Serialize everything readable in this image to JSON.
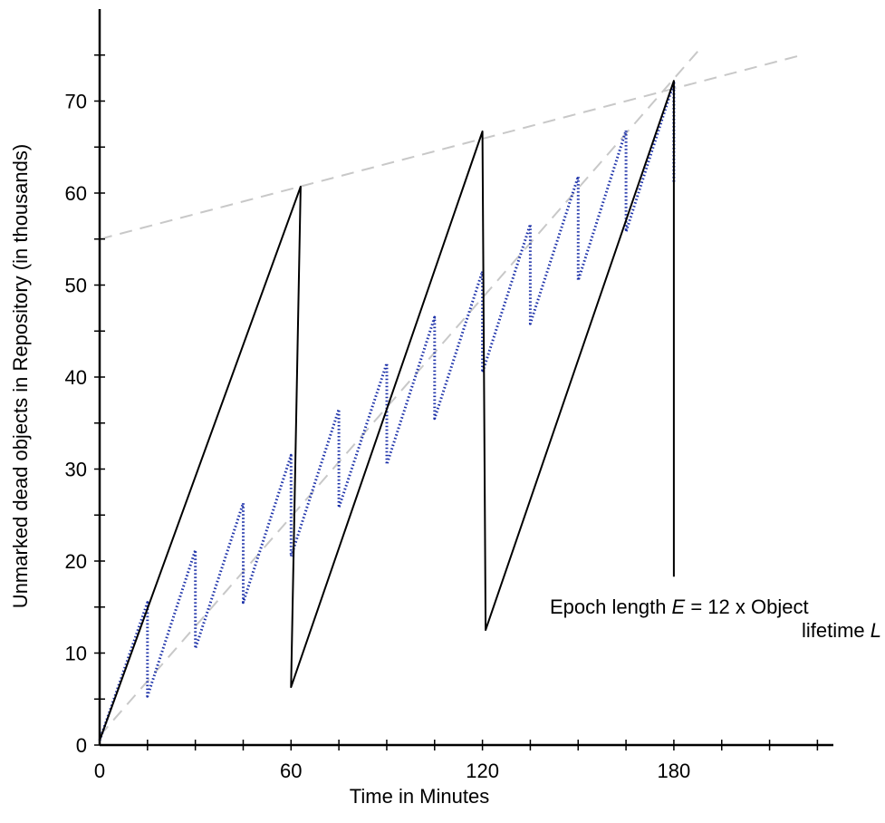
{
  "chart_data": {
    "type": "line",
    "xlabel": "Time in Minutes",
    "ylabel": "Unmarked dead objects in Repository (in thousands)",
    "xlim": [
      0,
      230
    ],
    "ylim": [
      0,
      80
    ],
    "x_ticks": [
      0,
      60,
      120,
      180
    ],
    "y_ticks": [
      0,
      10,
      20,
      30,
      40,
      50,
      60,
      70
    ],
    "grid": false,
    "annotation": {
      "prefix": "Epoch length ",
      "E": "E",
      "middle": " = 12 x Object",
      "line2": "lifetime ",
      "L": "L"
    },
    "series": [
      {
        "style": "solid",
        "color": "#000000",
        "points": [
          [
            0,
            0.5
          ],
          [
            63,
            60.7
          ],
          [
            60,
            6.3
          ],
          [
            120,
            66.7
          ],
          [
            121,
            12.5
          ],
          [
            180,
            72.2
          ],
          [
            180,
            18.3
          ]
        ]
      },
      {
        "style": "dotted",
        "color": "#1a2fa8",
        "points": [
          [
            0,
            0.5
          ],
          [
            15,
            15.5
          ],
          [
            15,
            5.3
          ],
          [
            30,
            21.2
          ],
          [
            30,
            10.5
          ],
          [
            45,
            26.3
          ],
          [
            45,
            15.5
          ],
          [
            60,
            31.5
          ],
          [
            60,
            20.5
          ],
          [
            75,
            36.5
          ],
          [
            75,
            25.8
          ],
          [
            90,
            41.5
          ],
          [
            90,
            30.5
          ],
          [
            105,
            46.5
          ],
          [
            105,
            35.5
          ],
          [
            120,
            51.5
          ],
          [
            120,
            40.5
          ],
          [
            135,
            56.6
          ],
          [
            135,
            45.8
          ],
          [
            150,
            61.8
          ],
          [
            150,
            50.5
          ],
          [
            165,
            66.8
          ],
          [
            165,
            55.8
          ],
          [
            180,
            72.0
          ],
          [
            180,
            61.0
          ]
        ]
      },
      {
        "style": "dashed",
        "color": "#c8c8c8",
        "points": [
          [
            0,
            55.0
          ],
          [
            220,
            75.0
          ]
        ]
      },
      {
        "style": "dashed",
        "color": "#c8c8c8",
        "points": [
          [
            0,
            1.0
          ],
          [
            189,
            76.0
          ]
        ]
      }
    ]
  }
}
